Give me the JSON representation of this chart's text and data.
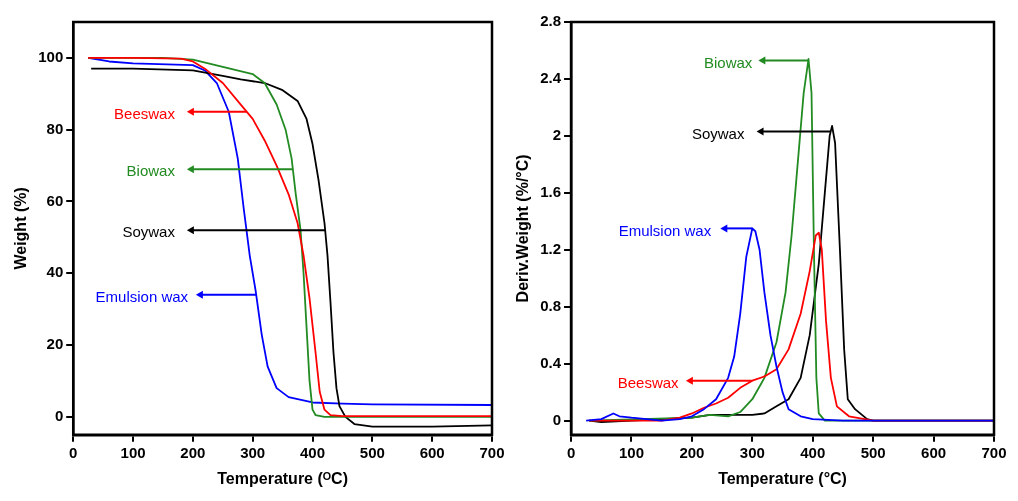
{
  "chart_data": [
    {
      "type": "line",
      "xlabel": "Temperature (ᴼC)",
      "ylabel": "Weight (%)",
      "xlim": [
        0,
        700
      ],
      "xticks": [
        0,
        100,
        200,
        300,
        400,
        500,
        600,
        700
      ],
      "ylim": [
        -5,
        110
      ],
      "yticks": [
        0,
        20,
        40,
        60,
        80,
        100
      ],
      "grid": false,
      "legend": "top left",
      "marker": "none",
      "line_style": "solid",
      "series": [
        {
          "name": "Beeswax",
          "color": "#ff0000",
          "x": [
            25,
            100,
            180,
            200,
            220,
            250,
            280,
            300,
            320,
            340,
            360,
            375,
            385,
            395,
            405,
            412,
            420,
            430,
            450,
            500,
            600,
            700
          ],
          "values": [
            100,
            100,
            99.8,
            99,
            97,
            93,
            87,
            83,
            77,
            70,
            62,
            54,
            45,
            33,
            18,
            7,
            2,
            0.5,
            0.2,
            0.2,
            0.2,
            0.2
          ]
        },
        {
          "name": "Biowax",
          "color": "#228b22",
          "x": [
            25,
            150,
            200,
            250,
            300,
            320,
            340,
            355,
            365,
            372,
            380,
            385,
            390,
            395,
            400,
            405,
            420,
            700
          ],
          "values": [
            100,
            100,
            99.5,
            97.5,
            95.5,
            93,
            87,
            80,
            72,
            62,
            52,
            40,
            25,
            10,
            2,
            0.5,
            0,
            0
          ]
        },
        {
          "name": "Soywax",
          "color": "#000000",
          "x": [
            30,
            100,
            200,
            250,
            280,
            320,
            350,
            375,
            390,
            400,
            410,
            420,
            425,
            430,
            435,
            440,
            445,
            455,
            470,
            500,
            600,
            700
          ],
          "values": [
            97,
            97,
            96.5,
            95,
            94,
            93,
            91,
            88,
            83,
            76,
            66,
            54,
            45,
            32,
            18,
            8,
            3,
            0,
            -2,
            -2.7,
            -2.7,
            -2.4
          ]
        },
        {
          "name": "Emulsion wax",
          "color": "#0000ff",
          "x": [
            25,
            60,
            100,
            200,
            220,
            240,
            260,
            275,
            285,
            295,
            305,
            315,
            325,
            340,
            360,
            400,
            450,
            500,
            700
          ],
          "values": [
            100,
            99,
            98.5,
            98,
            96.5,
            93,
            85,
            72,
            58,
            45,
            35,
            23,
            14,
            8,
            5.5,
            4,
            3.7,
            3.5,
            3.3
          ]
        }
      ]
    },
    {
      "type": "line",
      "xlabel": "Temperature (°C)",
      "ylabel": "Deriv.Weight (%/°C)",
      "xlim": [
        0,
        700
      ],
      "xticks": [
        0,
        100,
        200,
        300,
        400,
        500,
        600,
        700
      ],
      "ylim": [
        -0.1,
        2.8
      ],
      "yticks": [
        0,
        0.4,
        0.8,
        1.2,
        1.6,
        2,
        2.4,
        2.8
      ],
      "grid": false,
      "legend": "left",
      "marker": "none",
      "line_style": "solid",
      "series": [
        {
          "name": "Emulsion wax",
          "color": "#0000ff",
          "x": [
            25,
            50,
            70,
            80,
            100,
            150,
            180,
            200,
            220,
            240,
            260,
            270,
            280,
            290,
            300,
            305,
            312,
            320,
            330,
            340,
            350,
            360,
            380,
            400,
            450,
            700
          ],
          "values": [
            0,
            0.01,
            0.05,
            0.03,
            0.02,
            0,
            0.01,
            0.03,
            0.08,
            0.15,
            0.3,
            0.45,
            0.75,
            1.15,
            1.35,
            1.33,
            1.2,
            0.9,
            0.6,
            0.38,
            0.2,
            0.08,
            0.03,
            0.01,
            0,
            0
          ]
        },
        {
          "name": "Beeswax",
          "color": "#ff0000",
          "x": [
            30,
            100,
            150,
            180,
            200,
            220,
            240,
            260,
            280,
            300,
            320,
            340,
            360,
            380,
            395,
            405,
            410,
            415,
            422,
            430,
            440,
            460,
            500,
            700
          ],
          "values": [
            0,
            0,
            0,
            0.02,
            0.05,
            0.09,
            0.12,
            0.16,
            0.23,
            0.28,
            0.31,
            0.36,
            0.5,
            0.75,
            1.05,
            1.3,
            1.32,
            1.2,
            0.7,
            0.3,
            0.1,
            0.03,
            0,
            0
          ]
        },
        {
          "name": "Biowax",
          "color": "#228b22",
          "x": [
            30,
            200,
            230,
            260,
            280,
            300,
            320,
            340,
            355,
            365,
            375,
            385,
            393,
            398,
            402,
            406,
            410,
            420,
            700
          ],
          "values": [
            0,
            0.02,
            0.04,
            0.03,
            0.06,
            0.15,
            0.3,
            0.55,
            0.9,
            1.3,
            1.8,
            2.3,
            2.54,
            2.3,
            1.2,
            0.3,
            0.05,
            0,
            0
          ]
        },
        {
          "name": "Soywax",
          "color": "#000000",
          "x": [
            30,
            50,
            100,
            200,
            230,
            300,
            320,
            340,
            360,
            380,
            395,
            410,
            420,
            428,
            432,
            437,
            445,
            452,
            458,
            470,
            490,
            500,
            700
          ],
          "values": [
            0,
            -0.01,
            0,
            0.02,
            0.04,
            0.04,
            0.05,
            0.1,
            0.15,
            0.3,
            0.6,
            1.1,
            1.6,
            2,
            2.07,
            1.95,
            1.2,
            0.5,
            0.15,
            0.08,
            0.01,
            0,
            0
          ]
        }
      ]
    }
  ]
}
